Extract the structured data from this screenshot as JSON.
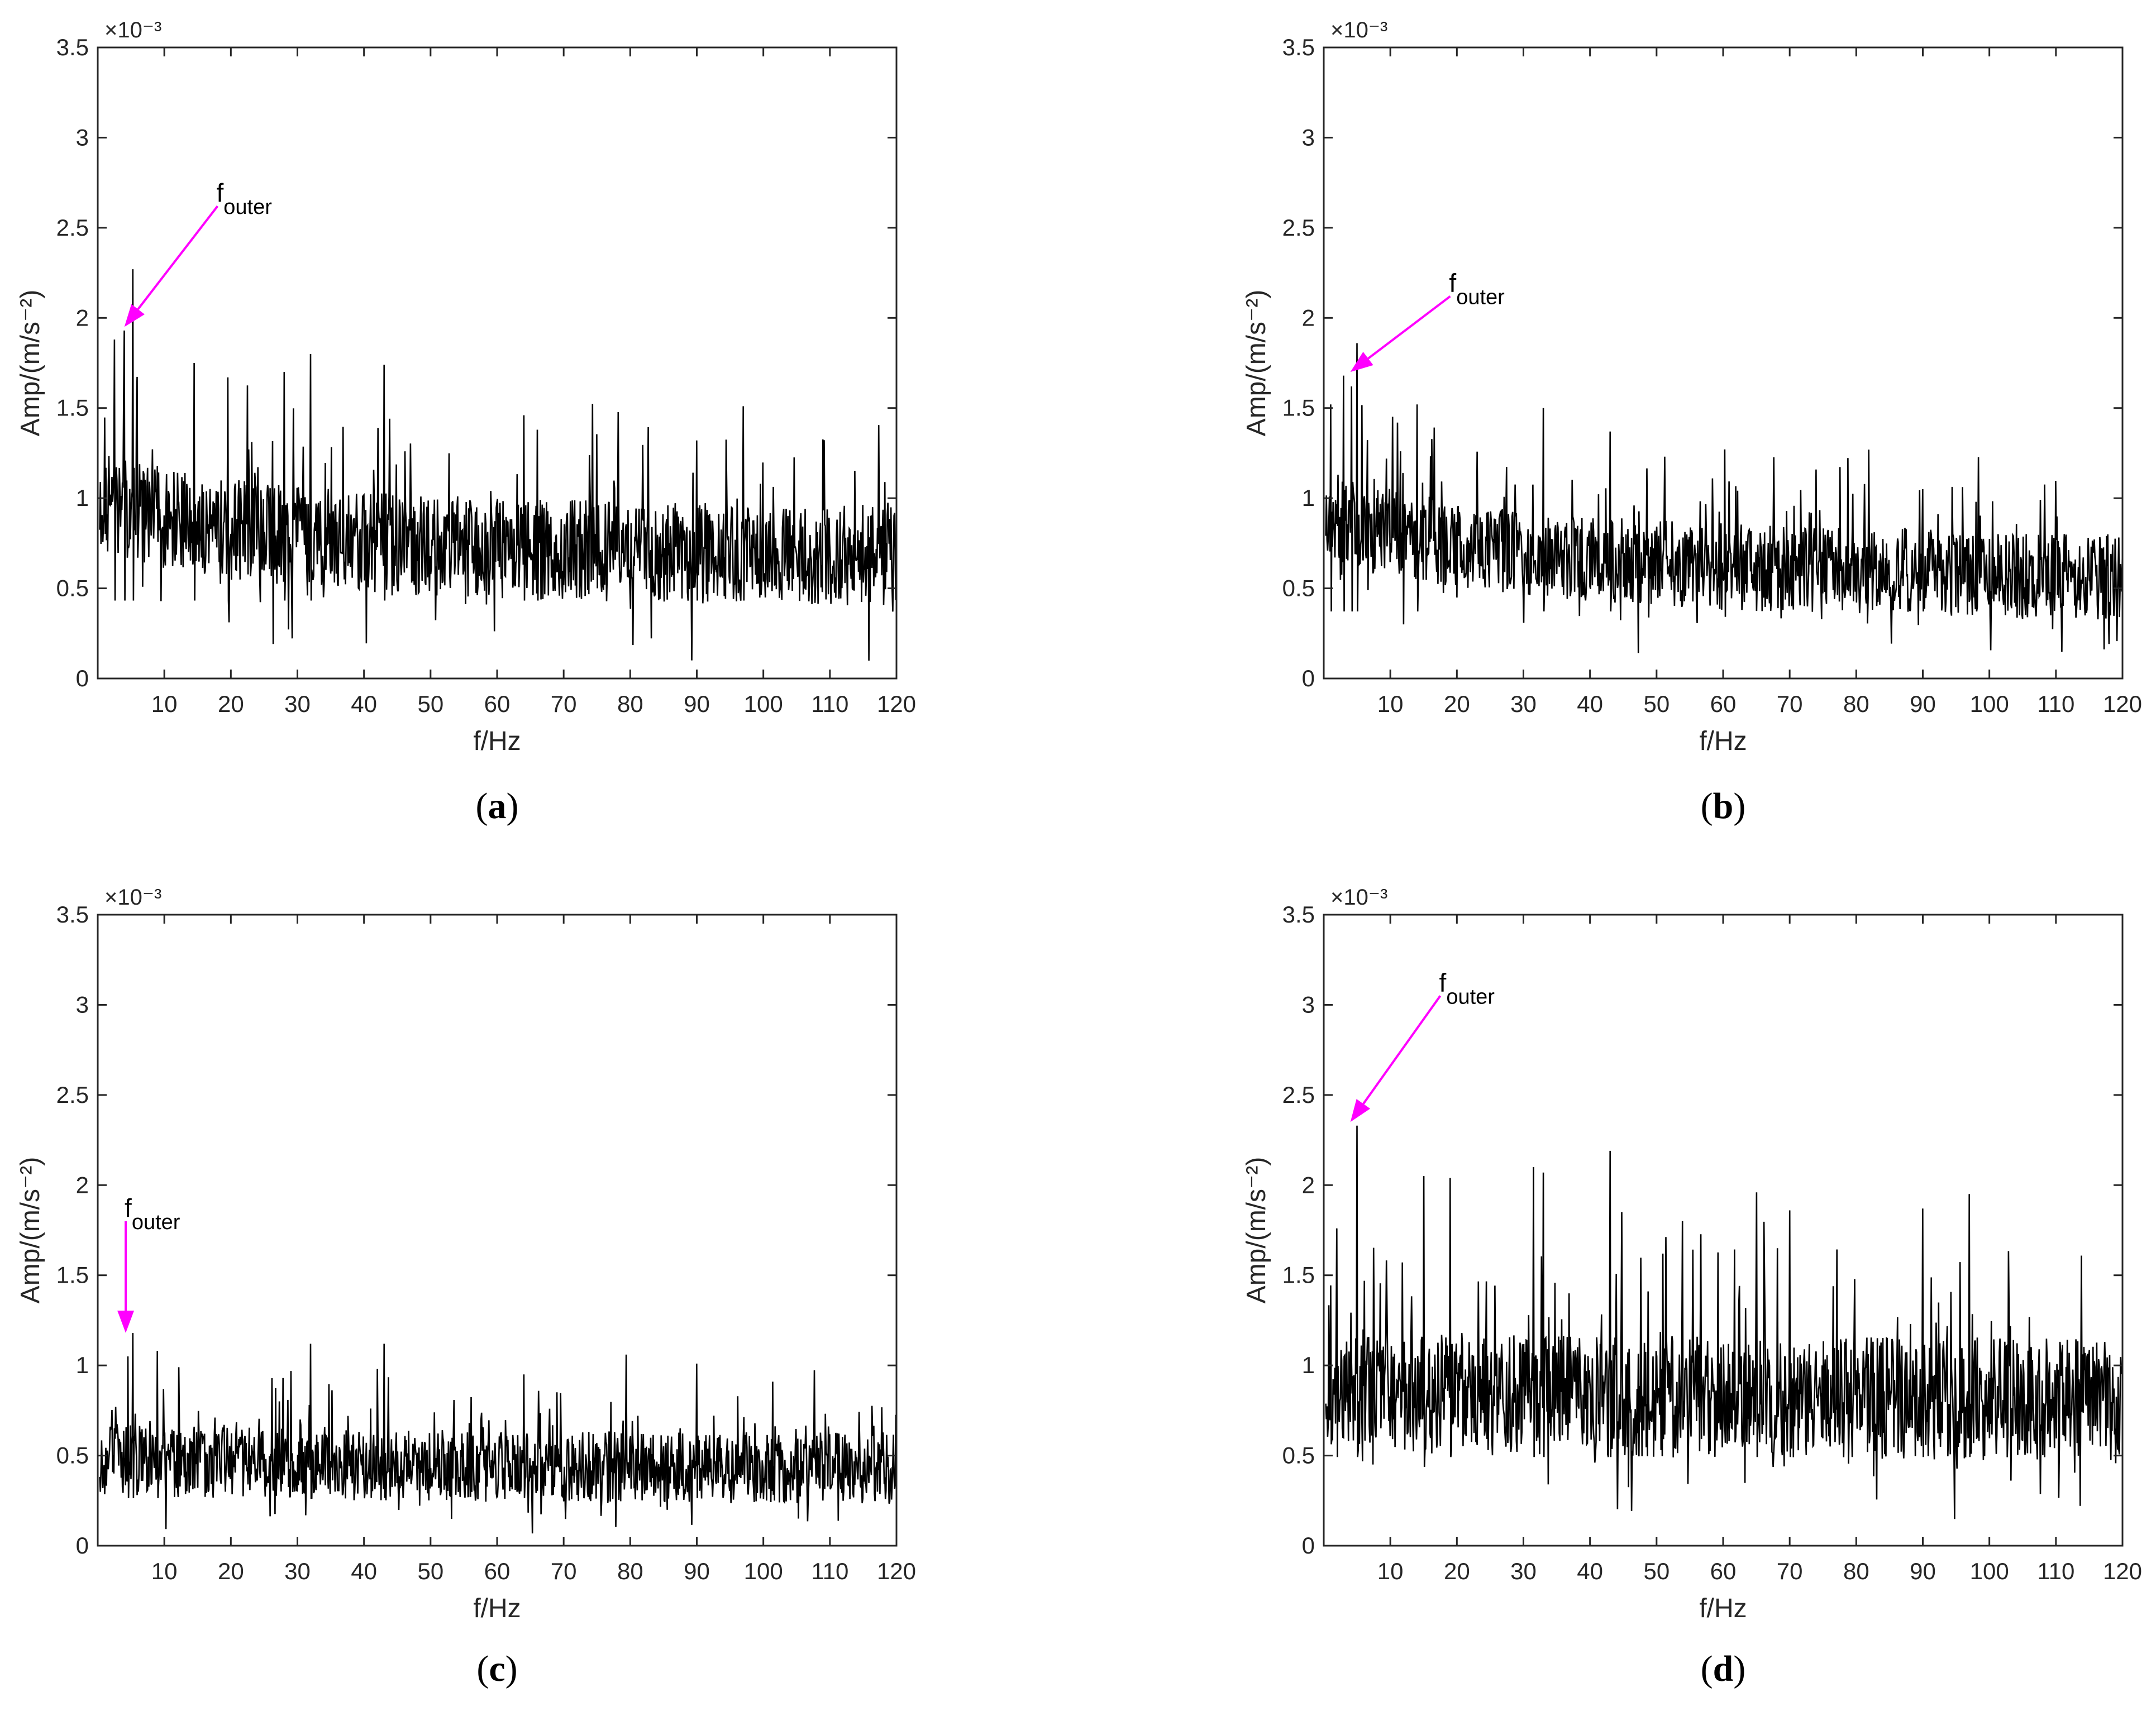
{
  "chart_data": [
    {
      "type": "line",
      "panel": "(a)",
      "panel_letter": "a",
      "xlabel": "f/Hz",
      "ylabel": "Amp/(m/s⁻²)",
      "y_multiplier": "×10⁻³",
      "xlim": [
        0,
        120
      ],
      "ylim": [
        0,
        3.5
      ],
      "xticks": [
        10,
        20,
        30,
        40,
        50,
        60,
        70,
        80,
        90,
        100,
        110,
        120
      ],
      "yticks": [
        0,
        0.5,
        1,
        1.5,
        2,
        2.5,
        3,
        3.5
      ],
      "series_color": "#000000",
      "spectrum_profile": {
        "baseline": 0.72,
        "decay": 0.22,
        "spread": 0.28,
        "floor": 0.08
      },
      "peaks": [
        {
          "x": 2.5,
          "y": 1.88
        },
        {
          "x": 4.0,
          "y": 1.93
        },
        {
          "x": 5.3,
          "y": 2.27
        },
        {
          "x": 14.5,
          "y": 1.75
        },
        {
          "x": 19.5,
          "y": 1.67
        },
        {
          "x": 28.0,
          "y": 1.7
        },
        {
          "x": 32.0,
          "y": 1.8
        },
        {
          "x": 43.0,
          "y": 1.74
        },
        {
          "x": 64.0,
          "y": 1.46
        },
        {
          "x": 97.0,
          "y": 1.51
        },
        {
          "x": 66.0,
          "y": 1.38
        },
        {
          "x": 90.0,
          "y": 1.32
        }
      ],
      "annotation": {
        "text": "f",
        "subscript": "outer",
        "target": {
          "x": 4.0,
          "y": 1.95
        },
        "from": {
          "x": 18.0,
          "y": 2.62
        }
      },
      "seed": 11
    },
    {
      "type": "line",
      "panel": "(b)",
      "panel_letter": "b",
      "xlabel": "f/Hz",
      "ylabel": "Amp/(m/s⁻²)",
      "y_multiplier": "×10⁻³",
      "xlim": [
        0,
        120
      ],
      "ylim": [
        0,
        3.5
      ],
      "xticks": [
        10,
        20,
        30,
        40,
        50,
        60,
        70,
        80,
        90,
        100,
        110,
        120
      ],
      "yticks": [
        0,
        0.5,
        1,
        1.5,
        2,
        2.5,
        3,
        3.5
      ],
      "series_color": "#000000",
      "spectrum_profile": {
        "baseline": 0.62,
        "decay": 0.3,
        "spread": 0.24,
        "floor": 0.06
      },
      "peaks": [
        {
          "x": 1.0,
          "y": 1.52
        },
        {
          "x": 3.0,
          "y": 1.68
        },
        {
          "x": 4.2,
          "y": 1.62
        },
        {
          "x": 5.0,
          "y": 1.86
        },
        {
          "x": 14.0,
          "y": 1.52
        },
        {
          "x": 33.0,
          "y": 1.5
        },
        {
          "x": 43.0,
          "y": 1.37
        },
        {
          "x": 90.0,
          "y": 1.05
        },
        {
          "x": 98.0,
          "y": 0.98
        }
      ],
      "annotation": {
        "text": "f",
        "subscript": "outer",
        "target": {
          "x": 4.0,
          "y": 1.7
        },
        "from": {
          "x": 19.0,
          "y": 2.12
        }
      },
      "seed": 23
    },
    {
      "type": "line",
      "panel": "(c)",
      "panel_letter": "c",
      "xlabel": "f/Hz",
      "ylabel": "Amp/(m/s⁻²)",
      "y_multiplier": "×10⁻³",
      "xlim": [
        0,
        120
      ],
      "ylim": [
        0,
        3.5
      ],
      "xticks": [
        10,
        20,
        30,
        40,
        50,
        60,
        70,
        80,
        90,
        100,
        110,
        120
      ],
      "yticks": [
        0,
        0.5,
        1,
        1.5,
        2,
        2.5,
        3,
        3.5
      ],
      "series_color": "#000000",
      "spectrum_profile": {
        "baseline": 0.44,
        "decay": 0.06,
        "spread": 0.2,
        "floor": 0.04
      },
      "peaks": [
        {
          "x": 4.5,
          "y": 1.05
        },
        {
          "x": 5.3,
          "y": 1.18
        },
        {
          "x": 9.0,
          "y": 1.08
        },
        {
          "x": 32.0,
          "y": 1.12
        },
        {
          "x": 43.0,
          "y": 1.12
        },
        {
          "x": 90.0,
          "y": 1.01
        },
        {
          "x": 64.0,
          "y": 0.95
        }
      ],
      "annotation": {
        "text": "f",
        "subscript": "outer",
        "target": {
          "x": 4.2,
          "y": 1.18
        },
        "from": {
          "x": 4.2,
          "y": 1.8
        }
      },
      "seed": 37
    },
    {
      "type": "line",
      "panel": "(d)",
      "panel_letter": "d",
      "xlabel": "f/Hz",
      "ylabel": "Amp/(m/s⁻²)",
      "y_multiplier": "×10⁻³",
      "xlim": [
        0,
        120
      ],
      "ylim": [
        0,
        3.5
      ],
      "xticks": [
        10,
        20,
        30,
        40,
        50,
        60,
        70,
        80,
        90,
        100,
        110,
        120
      ],
      "yticks": [
        0,
        0.5,
        1,
        1.5,
        2,
        2.5,
        3,
        3.5
      ],
      "series_color": "#000000",
      "spectrum_profile": {
        "baseline": 0.82,
        "decay": 0.04,
        "spread": 0.34,
        "floor": 0.12
      },
      "peaks": [
        {
          "x": 2.0,
          "y": 1.76
        },
        {
          "x": 5.0,
          "y": 2.33
        },
        {
          "x": 15.0,
          "y": 2.05
        },
        {
          "x": 19.0,
          "y": 2.04
        },
        {
          "x": 31.5,
          "y": 2.1
        },
        {
          "x": 33.0,
          "y": 2.07
        },
        {
          "x": 43.0,
          "y": 2.19
        },
        {
          "x": 65.0,
          "y": 1.96
        },
        {
          "x": 97.0,
          "y": 1.95
        },
        {
          "x": 90.0,
          "y": 1.87
        },
        {
          "x": 70.0,
          "y": 1.86
        }
      ],
      "annotation": {
        "text": "f",
        "subscript": "outer",
        "target": {
          "x": 4.0,
          "y": 2.35
        },
        "from": {
          "x": 17.5,
          "y": 3.05
        }
      },
      "seed": 53
    }
  ],
  "colors": {
    "annotation": "#ff00ff",
    "trace": "#000000",
    "axis": "#262626"
  }
}
